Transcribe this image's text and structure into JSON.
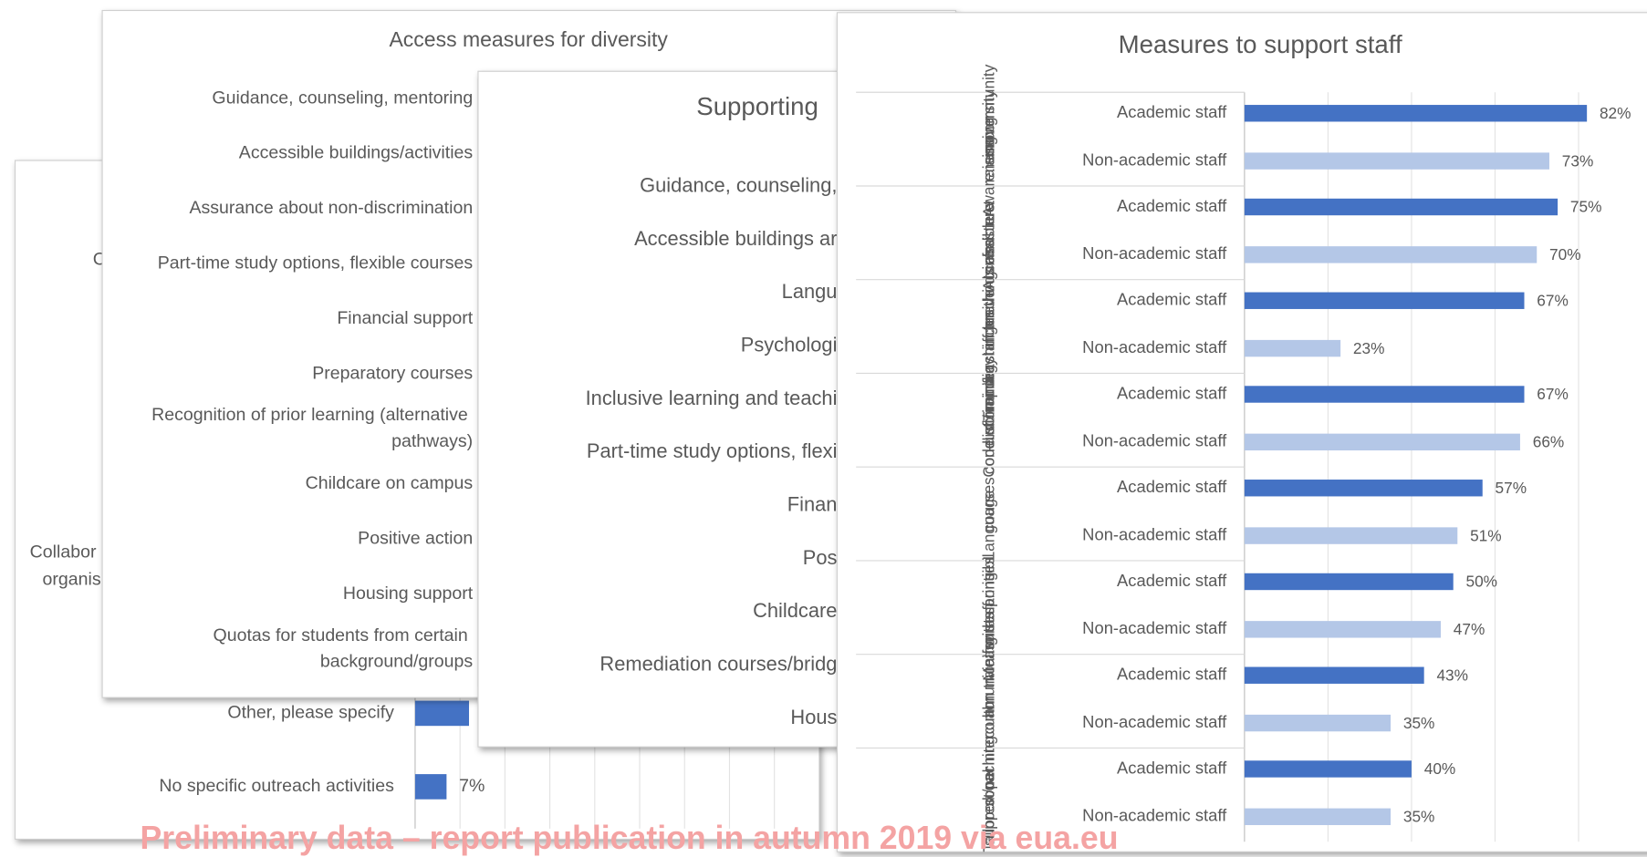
{
  "chart_data": [
    {
      "type": "bar",
      "categories": [
        "Other, please specify",
        "No specific outreach activities"
      ],
      "values": [
        12,
        7
      ],
      "value_labels": [
        null,
        "7%"
      ],
      "color": "#4472c4",
      "xlim": [
        0,
        90
      ],
      "xticks": [
        0,
        10,
        20,
        30,
        40,
        50,
        60,
        70,
        80
      ],
      "grid": true,
      "annotations": [
        "C",
        "Collabor",
        "organis"
      ]
    },
    {
      "type": "labels",
      "title": "Access measures for diversity",
      "categories": [
        "Guidance, counseling, mentoring",
        "Accessible buildings/activities",
        "Assurance about non-discrimination",
        "Part-time study options, flexible courses",
        "Financial support",
        "Preparatory courses",
        "Recognition of prior learning (alternative pathways)",
        "Childcare on campus",
        "Positive action",
        "Housing support",
        "Quotas for students from certain background/groups"
      ]
    },
    {
      "type": "labels",
      "title": "Supporting",
      "categories": [
        "Guidance, counseling,",
        "Accessible buildings ar",
        "Langu",
        "Psychologi",
        "Inclusive learning and teachi",
        "Part-time study options, flexi",
        "Finan",
        "Pos",
        "Childcare",
        "Remediation courses/bridg",
        "Hous"
      ]
    },
    {
      "type": "grouped-bar",
      "title": "Measures to support staff",
      "categories": [
        "Awareness raising among university community",
        "Accessible infrastructure",
        "Training for teaching staff on inclusive teaching methods and tools",
        "Code of conduct/non-discrimination policy",
        "Language courses",
        "Measures for staff with caring responsibilities",
        "Intercultural communication training",
        "Tailored support/personal coaching"
      ],
      "series": [
        {
          "name": "Academic staff",
          "color": "#4472c4",
          "values": [
            82,
            75,
            67,
            67,
            57,
            50,
            43,
            40
          ],
          "value_labels": [
            "82%",
            "75%",
            "67%",
            "67%",
            "57%",
            "50%",
            "43%",
            "40%"
          ]
        },
        {
          "name": "Non-academic staff",
          "color": "#b4c7e7",
          "values": [
            73,
            70,
            23,
            66,
            51,
            47,
            35,
            35
          ],
          "value_labels": [
            "73%",
            "70%",
            "23%",
            "66%",
            "51%",
            "47%",
            "35%",
            "35%"
          ]
        }
      ],
      "xlim": [
        0,
        90
      ],
      "xticks": [
        0,
        20,
        40,
        60,
        80
      ],
      "grid": true
    }
  ],
  "watermark": "Preliminary data – report publication in autumn 2019 via eua.eu"
}
